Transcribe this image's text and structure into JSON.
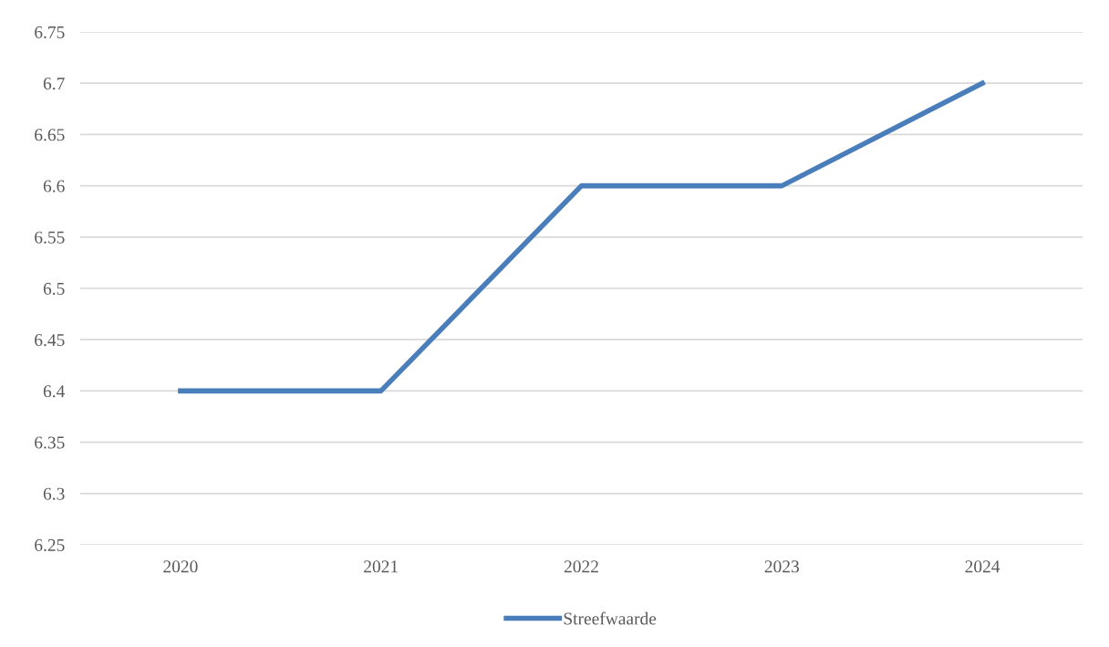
{
  "chart_data": {
    "type": "line",
    "categories": [
      "2020",
      "2021",
      "2022",
      "2023",
      "2024"
    ],
    "series": [
      {
        "name": "Streefwaarde",
        "color": "#4a7ebb",
        "values": [
          6.4,
          6.4,
          6.6,
          6.6,
          6.7
        ]
      }
    ],
    "ylim": [
      6.25,
      6.75
    ],
    "yticks": [
      6.25,
      6.3,
      6.35,
      6.4,
      6.45,
      6.5,
      6.55,
      6.6,
      6.65,
      6.7,
      6.75
    ],
    "grid": "y",
    "legend": "bottom",
    "marker": "none",
    "line_style": "solid"
  }
}
